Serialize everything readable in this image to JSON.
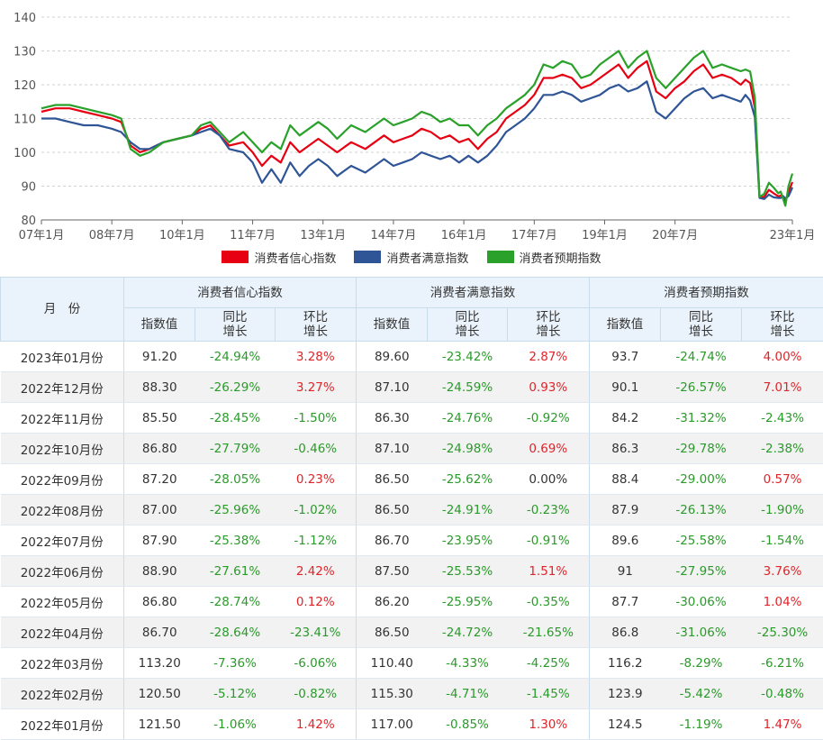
{
  "chart_data": {
    "type": "line",
    "yticks": [
      80,
      90,
      100,
      110,
      120,
      130,
      140
    ],
    "ylim": [
      80,
      140
    ],
    "xticks": [
      "07年1月",
      "08年7月",
      "10年1月",
      "11年7月",
      "13年1月",
      "14年7月",
      "16年1月",
      "17年7月",
      "19年1月",
      "20年7月",
      "23年1月"
    ],
    "xlim": [
      2007.0,
      2023.0
    ],
    "legend_position": "bottom",
    "series": [
      {
        "name": "消费者信心指数",
        "color": "#e60012",
        "points": [
          [
            2007.0,
            112
          ],
          [
            2007.3,
            113
          ],
          [
            2007.6,
            113
          ],
          [
            2007.9,
            112
          ],
          [
            2008.2,
            111
          ],
          [
            2008.5,
            110
          ],
          [
            2008.7,
            109
          ],
          [
            2008.9,
            102
          ],
          [
            2009.1,
            100
          ],
          [
            2009.3,
            101
          ],
          [
            2009.6,
            103
          ],
          [
            2009.9,
            104
          ],
          [
            2010.2,
            105
          ],
          [
            2010.4,
            107
          ],
          [
            2010.6,
            108
          ],
          [
            2010.8,
            105
          ],
          [
            2011.0,
            102
          ],
          [
            2011.3,
            103
          ],
          [
            2011.5,
            100
          ],
          [
            2011.7,
            96
          ],
          [
            2011.9,
            99
          ],
          [
            2012.1,
            97
          ],
          [
            2012.3,
            103
          ],
          [
            2012.5,
            100
          ],
          [
            2012.7,
            102
          ],
          [
            2012.9,
            104
          ],
          [
            2013.1,
            102
          ],
          [
            2013.3,
            100
          ],
          [
            2013.6,
            103
          ],
          [
            2013.9,
            101
          ],
          [
            2014.1,
            103
          ],
          [
            2014.3,
            105
          ],
          [
            2014.5,
            103
          ],
          [
            2014.7,
            104
          ],
          [
            2014.9,
            105
          ],
          [
            2015.1,
            107
          ],
          [
            2015.3,
            106
          ],
          [
            2015.5,
            104
          ],
          [
            2015.7,
            105
          ],
          [
            2015.9,
            103
          ],
          [
            2016.1,
            104
          ],
          [
            2016.3,
            101
          ],
          [
            2016.5,
            104
          ],
          [
            2016.7,
            106
          ],
          [
            2016.9,
            110
          ],
          [
            2017.1,
            112
          ],
          [
            2017.3,
            114
          ],
          [
            2017.5,
            117
          ],
          [
            2017.7,
            122
          ],
          [
            2017.9,
            122
          ],
          [
            2018.1,
            123
          ],
          [
            2018.3,
            122
          ],
          [
            2018.5,
            119
          ],
          [
            2018.7,
            120
          ],
          [
            2018.9,
            122
          ],
          [
            2019.1,
            124
          ],
          [
            2019.3,
            126
          ],
          [
            2019.5,
            122
          ],
          [
            2019.7,
            125
          ],
          [
            2019.9,
            127
          ],
          [
            2020.1,
            118
          ],
          [
            2020.3,
            116
          ],
          [
            2020.5,
            119
          ],
          [
            2020.7,
            121
          ],
          [
            2020.9,
            124
          ],
          [
            2021.1,
            126
          ],
          [
            2021.3,
            122
          ],
          [
            2021.5,
            123
          ],
          [
            2021.7,
            122
          ],
          [
            2021.9,
            120
          ],
          [
            2022.0,
            121.5
          ],
          [
            2022.1,
            120.5
          ],
          [
            2022.2,
            113.2
          ],
          [
            2022.3,
            86.7
          ],
          [
            2022.4,
            86.8
          ],
          [
            2022.5,
            88.9
          ],
          [
            2022.6,
            87.9
          ],
          [
            2022.7,
            87.0
          ],
          [
            2022.75,
            87.2
          ],
          [
            2022.8,
            86.8
          ],
          [
            2022.85,
            85.5
          ],
          [
            2022.92,
            88.3
          ],
          [
            2023.0,
            91.2
          ]
        ]
      },
      {
        "name": "消费者满意指数",
        "color": "#2f5597",
        "points": [
          [
            2007.0,
            110
          ],
          [
            2007.3,
            110
          ],
          [
            2007.6,
            109
          ],
          [
            2007.9,
            108
          ],
          [
            2008.2,
            108
          ],
          [
            2008.5,
            107
          ],
          [
            2008.7,
            106
          ],
          [
            2008.9,
            103
          ],
          [
            2009.1,
            101
          ],
          [
            2009.3,
            101
          ],
          [
            2009.6,
            103
          ],
          [
            2009.9,
            104
          ],
          [
            2010.2,
            105
          ],
          [
            2010.4,
            106
          ],
          [
            2010.6,
            107
          ],
          [
            2010.8,
            105
          ],
          [
            2011.0,
            101
          ],
          [
            2011.3,
            100
          ],
          [
            2011.5,
            97
          ],
          [
            2011.7,
            91
          ],
          [
            2011.9,
            95
          ],
          [
            2012.1,
            91
          ],
          [
            2012.3,
            97
          ],
          [
            2012.5,
            93
          ],
          [
            2012.7,
            96
          ],
          [
            2012.9,
            98
          ],
          [
            2013.1,
            96
          ],
          [
            2013.3,
            93
          ],
          [
            2013.6,
            96
          ],
          [
            2013.9,
            94
          ],
          [
            2014.1,
            96
          ],
          [
            2014.3,
            98
          ],
          [
            2014.5,
            96
          ],
          [
            2014.7,
            97
          ],
          [
            2014.9,
            98
          ],
          [
            2015.1,
            100
          ],
          [
            2015.3,
            99
          ],
          [
            2015.5,
            98
          ],
          [
            2015.7,
            99
          ],
          [
            2015.9,
            97
          ],
          [
            2016.1,
            99
          ],
          [
            2016.3,
            97
          ],
          [
            2016.5,
            99
          ],
          [
            2016.7,
            102
          ],
          [
            2016.9,
            106
          ],
          [
            2017.1,
            108
          ],
          [
            2017.3,
            110
          ],
          [
            2017.5,
            113
          ],
          [
            2017.7,
            117
          ],
          [
            2017.9,
            117
          ],
          [
            2018.1,
            118
          ],
          [
            2018.3,
            117
          ],
          [
            2018.5,
            115
          ],
          [
            2018.7,
            116
          ],
          [
            2018.9,
            117
          ],
          [
            2019.1,
            119
          ],
          [
            2019.3,
            120
          ],
          [
            2019.5,
            118
          ],
          [
            2019.7,
            119
          ],
          [
            2019.9,
            121
          ],
          [
            2020.1,
            112
          ],
          [
            2020.3,
            110
          ],
          [
            2020.5,
            113
          ],
          [
            2020.7,
            116
          ],
          [
            2020.9,
            118
          ],
          [
            2021.1,
            119
          ],
          [
            2021.3,
            116
          ],
          [
            2021.5,
            117
          ],
          [
            2021.7,
            116
          ],
          [
            2021.9,
            115
          ],
          [
            2022.0,
            117.0
          ],
          [
            2022.1,
            115.3
          ],
          [
            2022.2,
            110.4
          ],
          [
            2022.3,
            86.5
          ],
          [
            2022.4,
            86.2
          ],
          [
            2022.5,
            87.5
          ],
          [
            2022.6,
            86.7
          ],
          [
            2022.7,
            86.5
          ],
          [
            2022.75,
            86.5
          ],
          [
            2022.8,
            87.1
          ],
          [
            2022.85,
            86.3
          ],
          [
            2022.92,
            87.1
          ],
          [
            2023.0,
            89.6
          ]
        ]
      },
      {
        "name": "消费者预期指数",
        "color": "#2aa12a",
        "points": [
          [
            2007.0,
            113
          ],
          [
            2007.3,
            114
          ],
          [
            2007.6,
            114
          ],
          [
            2007.9,
            113
          ],
          [
            2008.2,
            112
          ],
          [
            2008.5,
            111
          ],
          [
            2008.7,
            110
          ],
          [
            2008.9,
            101
          ],
          [
            2009.1,
            99
          ],
          [
            2009.3,
            100
          ],
          [
            2009.6,
            103
          ],
          [
            2009.9,
            104
          ],
          [
            2010.2,
            105
          ],
          [
            2010.4,
            108
          ],
          [
            2010.6,
            109
          ],
          [
            2010.8,
            106
          ],
          [
            2011.0,
            103
          ],
          [
            2011.3,
            106
          ],
          [
            2011.5,
            103
          ],
          [
            2011.7,
            100
          ],
          [
            2011.9,
            103
          ],
          [
            2012.1,
            101
          ],
          [
            2012.3,
            108
          ],
          [
            2012.5,
            105
          ],
          [
            2012.7,
            107
          ],
          [
            2012.9,
            109
          ],
          [
            2013.1,
            107
          ],
          [
            2013.3,
            104
          ],
          [
            2013.6,
            108
          ],
          [
            2013.9,
            106
          ],
          [
            2014.1,
            108
          ],
          [
            2014.3,
            110
          ],
          [
            2014.5,
            108
          ],
          [
            2014.7,
            109
          ],
          [
            2014.9,
            110
          ],
          [
            2015.1,
            112
          ],
          [
            2015.3,
            111
          ],
          [
            2015.5,
            109
          ],
          [
            2015.7,
            110
          ],
          [
            2015.9,
            108
          ],
          [
            2016.1,
            108
          ],
          [
            2016.3,
            105
          ],
          [
            2016.5,
            108
          ],
          [
            2016.7,
            110
          ],
          [
            2016.9,
            113
          ],
          [
            2017.1,
            115
          ],
          [
            2017.3,
            117
          ],
          [
            2017.5,
            120
          ],
          [
            2017.7,
            126
          ],
          [
            2017.9,
            125
          ],
          [
            2018.1,
            127
          ],
          [
            2018.3,
            126
          ],
          [
            2018.5,
            122
          ],
          [
            2018.7,
            123
          ],
          [
            2018.9,
            126
          ],
          [
            2019.1,
            128
          ],
          [
            2019.3,
            130
          ],
          [
            2019.5,
            125
          ],
          [
            2019.7,
            128
          ],
          [
            2019.9,
            130
          ],
          [
            2020.1,
            122
          ],
          [
            2020.3,
            119
          ],
          [
            2020.5,
            122
          ],
          [
            2020.7,
            125
          ],
          [
            2020.9,
            128
          ],
          [
            2021.1,
            130
          ],
          [
            2021.3,
            125
          ],
          [
            2021.5,
            126
          ],
          [
            2021.7,
            125
          ],
          [
            2021.9,
            124
          ],
          [
            2022.0,
            124.5
          ],
          [
            2022.1,
            123.9
          ],
          [
            2022.2,
            116.2
          ],
          [
            2022.3,
            86.8
          ],
          [
            2022.4,
            87.7
          ],
          [
            2022.5,
            91.0
          ],
          [
            2022.6,
            89.6
          ],
          [
            2022.7,
            87.9
          ],
          [
            2022.75,
            88.4
          ],
          [
            2022.8,
            86.3
          ],
          [
            2022.85,
            84.2
          ],
          [
            2022.92,
            90.1
          ],
          [
            2023.0,
            93.7
          ]
        ]
      }
    ]
  },
  "table": {
    "month_header": "月　份",
    "groups": [
      "消费者信心指数",
      "消费者满意指数",
      "消费者预期指数"
    ],
    "sub_headers": [
      "指数值",
      "同比\n增长",
      "环比\n增长"
    ],
    "rows": [
      {
        "month": "2023年01月份",
        "cells": [
          "91.20",
          "-24.94%",
          "3.28%",
          "89.60",
          "-23.42%",
          "2.87%",
          "93.7",
          "-24.74%",
          "4.00%"
        ]
      },
      {
        "month": "2022年12月份",
        "cells": [
          "88.30",
          "-26.29%",
          "3.27%",
          "87.10",
          "-24.59%",
          "0.93%",
          "90.1",
          "-26.57%",
          "7.01%"
        ]
      },
      {
        "month": "2022年11月份",
        "cells": [
          "85.50",
          "-28.45%",
          "-1.50%",
          "86.30",
          "-24.76%",
          "-0.92%",
          "84.2",
          "-31.32%",
          "-2.43%"
        ]
      },
      {
        "month": "2022年10月份",
        "cells": [
          "86.80",
          "-27.79%",
          "-0.46%",
          "87.10",
          "-24.98%",
          "0.69%",
          "86.3",
          "-29.78%",
          "-2.38%"
        ]
      },
      {
        "month": "2022年09月份",
        "cells": [
          "87.20",
          "-28.05%",
          "0.23%",
          "86.50",
          "-25.62%",
          "0.00%",
          "88.4",
          "-29.00%",
          "0.57%"
        ]
      },
      {
        "month": "2022年08月份",
        "cells": [
          "87.00",
          "-25.96%",
          "-1.02%",
          "86.50",
          "-24.91%",
          "-0.23%",
          "87.9",
          "-26.13%",
          "-1.90%"
        ]
      },
      {
        "month": "2022年07月份",
        "cells": [
          "87.90",
          "-25.38%",
          "-1.12%",
          "86.70",
          "-23.95%",
          "-0.91%",
          "89.6",
          "-25.58%",
          "-1.54%"
        ]
      },
      {
        "month": "2022年06月份",
        "cells": [
          "88.90",
          "-27.61%",
          "2.42%",
          "87.50",
          "-25.53%",
          "1.51%",
          "91",
          "-27.95%",
          "3.76%"
        ]
      },
      {
        "month": "2022年05月份",
        "cells": [
          "86.80",
          "-28.74%",
          "0.12%",
          "86.20",
          "-25.95%",
          "-0.35%",
          "87.7",
          "-30.06%",
          "1.04%"
        ]
      },
      {
        "month": "2022年04月份",
        "cells": [
          "86.70",
          "-28.64%",
          "-23.41%",
          "86.50",
          "-24.72%",
          "-21.65%",
          "86.8",
          "-31.06%",
          "-25.30%"
        ]
      },
      {
        "month": "2022年03月份",
        "cells": [
          "113.20",
          "-7.36%",
          "-6.06%",
          "110.40",
          "-4.33%",
          "-4.25%",
          "116.2",
          "-8.29%",
          "-6.21%"
        ]
      },
      {
        "month": "2022年02月份",
        "cells": [
          "120.50",
          "-5.12%",
          "-0.82%",
          "115.30",
          "-4.71%",
          "-1.45%",
          "123.9",
          "-5.42%",
          "-0.48%"
        ]
      },
      {
        "month": "2022年01月份",
        "cells": [
          "121.50",
          "-1.06%",
          "1.42%",
          "117.00",
          "-0.85%",
          "1.30%",
          "124.5",
          "-1.19%",
          "1.47%"
        ]
      }
    ]
  }
}
